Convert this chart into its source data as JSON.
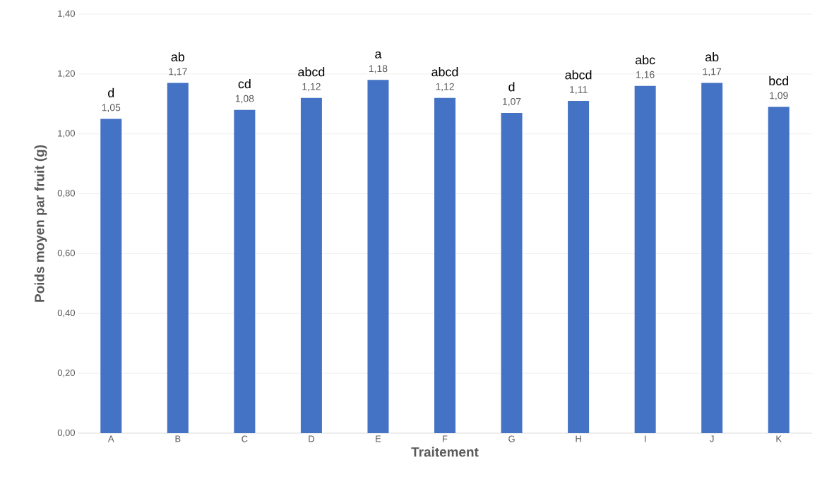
{
  "chart_data": {
    "type": "bar",
    "xlabel": "Traitement",
    "ylabel": "Poids moyen par fruit (g)",
    "categories": [
      "A",
      "B",
      "C",
      "D",
      "E",
      "F",
      "G",
      "H",
      "I",
      "J",
      "K"
    ],
    "values": [
      1.05,
      1.17,
      1.08,
      1.12,
      1.18,
      1.12,
      1.07,
      1.11,
      1.16,
      1.17,
      1.09
    ],
    "value_labels": [
      "1,05",
      "1,17",
      "1,08",
      "1,12",
      "1,18",
      "1,12",
      "1,07",
      "1,11",
      "1,16",
      "1,17",
      "1,09"
    ],
    "color": "#4472c4",
    "ylim": [
      0,
      1.4
    ],
    "yticks": [
      {
        "value": 0,
        "label": "0,00"
      },
      {
        "value": 0.2,
        "label": "0,20"
      },
      {
        "value": 0.4,
        "label": "0,40"
      },
      {
        "value": 0.6,
        "label": "0,60"
      },
      {
        "value": 0.8,
        "label": "0,80"
      },
      {
        "value": 1.0,
        "label": "1,00"
      },
      {
        "value": 1.2,
        "label": "1,20"
      },
      {
        "value": 1.4,
        "label": "1,40"
      }
    ],
    "grid": "y",
    "annotations": [
      {
        "text": "d",
        "x": "A",
        "y": 1.05
      },
      {
        "text": "ab",
        "x": "B",
        "y": 1.17
      },
      {
        "text": "cd",
        "x": "C",
        "y": 1.08
      },
      {
        "text": "abcd",
        "x": "D",
        "y": 1.12
      },
      {
        "text": "a",
        "x": "E",
        "y": 1.18
      },
      {
        "text": "abcd",
        "x": "F",
        "y": 1.12
      },
      {
        "text": "d",
        "x": "G",
        "y": 1.07
      },
      {
        "text": "abcd",
        "x": "H",
        "y": 1.11
      },
      {
        "text": "abc",
        "x": "I",
        "y": 1.16
      },
      {
        "text": "ab",
        "x": "J",
        "y": 1.17
      },
      {
        "text": "bcd",
        "x": "K",
        "y": 1.09
      }
    ]
  }
}
